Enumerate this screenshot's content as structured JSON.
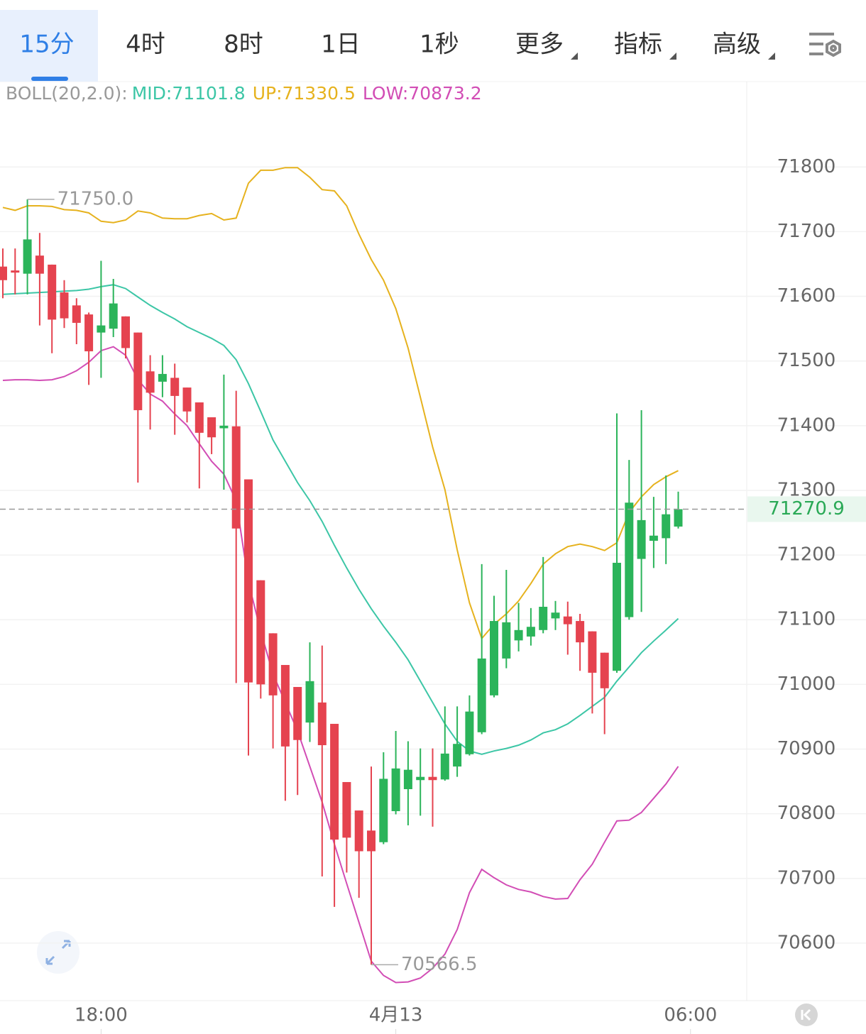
{
  "tabs": [
    {
      "label": "15分",
      "active": true
    },
    {
      "label": "4时"
    },
    {
      "label": "8时"
    },
    {
      "label": "1日"
    },
    {
      "label": "1秒"
    },
    {
      "label": "更多",
      "dropdown": true
    },
    {
      "label": "指标",
      "dropdown": true
    },
    {
      "label": "高级",
      "dropdown": true
    }
  ],
  "chart_data": {
    "type": "candlestick",
    "indicator": "BOLL(20,2.0):",
    "up_color": "#2bb45a",
    "down_color": "#e5434f",
    "open": [
      71646,
      71640,
      71635,
      71663,
      71649,
      71606,
      71586,
      71572,
      71544,
      71550,
      71569,
      71544,
      71484,
      71468,
      71474,
      71459,
      71436,
      71413,
      71396,
      71399,
      71317,
      71161,
      71079,
      71030,
      70996,
      70941,
      70972,
      70939,
      70849,
      70805,
      70774,
      70756,
      70804,
      70838,
      70852,
      70857,
      70853,
      70873,
      70892,
      70926,
      70983,
      71040,
      71068,
      71074,
      71084,
      71102,
      71105,
      71098,
      71082,
      71049,
      71021,
      71104,
      71194,
      71222,
      71226,
      71244
    ],
    "high": [
      71674,
      71674,
      71750,
      71698,
      71649,
      71625,
      71597,
      71575,
      71655,
      71627,
      71569,
      71544,
      71509,
      71509,
      71496,
      71459,
      71436,
      71413,
      71479,
      71454,
      71317,
      71161,
      71079,
      71030,
      70996,
      71065,
      71060,
      70939,
      70849,
      70805,
      70873,
      70895,
      70928,
      70912,
      70901,
      70901,
      70966,
      70966,
      70983,
      71186,
      71137,
      71177,
      71126,
      71118,
      71197,
      71129,
      71128,
      71109,
      71082,
      71049,
      71419,
      71347,
      71424,
      71290,
      71323,
      71298
    ],
    "low": [
      71597,
      71603,
      71603,
      71555,
      71512,
      71551,
      71526,
      71463,
      71474,
      71537,
      71504,
      71312,
      71394,
      71444,
      71386,
      71405,
      71303,
      71356,
      71301,
      71002,
      70890,
      70978,
      70901,
      70820,
      70829,
      70911,
      70703,
      70656,
      70709,
      70670,
      70566.5,
      70753,
      70799,
      70782,
      70797,
      70780,
      70851,
      70857,
      70890,
      70923,
      70980,
      71025,
      71051,
      71060,
      71079,
      71084,
      71046,
      71021,
      70955,
      70923,
      71018,
      71100,
      71112,
      71180,
      71186,
      71241
    ],
    "close": [
      71625,
      71637,
      71688,
      71635,
      71564,
      71566,
      71559,
      71515,
      71555,
      71589,
      71520,
      71424,
      71451,
      71480,
      71446,
      71422,
      71389,
      71382,
      71400,
      71241,
      71003,
      71000,
      70983,
      70904,
      70914,
      71005,
      70906,
      70760,
      70763,
      70742,
      70742,
      70854,
      70870,
      70868,
      70857,
      70852,
      70893,
      70908,
      70958,
      71040,
      71098,
      71096,
      71084,
      71089,
      71120,
      71111,
      71093,
      71065,
      71018,
      70994,
      71188,
      71281,
      71254,
      71230,
      71263,
      71270.9
    ],
    "series": [
      {
        "name": "MID",
        "legend_label": "MID:71101.8",
        "color": "#3cc6a6",
        "values": [
          71603,
          71604,
          71605,
          71606,
          71607,
          71608,
          71609,
          71611,
          71615,
          71618,
          71612,
          71599,
          71586,
          71575,
          71565,
          71553,
          71544,
          71535,
          71524,
          71502,
          71465,
          71422,
          71378,
          71345,
          71312,
          71284,
          71252,
          71215,
          71180,
          71147,
          71117,
          71090,
          71065,
          71038,
          71005,
          70972,
          70939,
          70912,
          70897,
          70892,
          70897,
          70901,
          70906,
          70914,
          70925,
          70930,
          70939,
          70952,
          70966,
          70980,
          71005,
          71027,
          71049,
          71067,
          71084,
          71101.8
        ]
      },
      {
        "name": "UP",
        "legend_label": "UP:71330.5",
        "color": "#e6b21e",
        "values": [
          71737.5,
          71733,
          71740,
          71740,
          71739,
          71734,
          71733,
          71729,
          71716,
          71714,
          71718,
          71732,
          71729,
          71721,
          71720,
          71720,
          71725,
          71728,
          71718,
          71721,
          71775,
          71795,
          71795,
          71799,
          71799,
          71784,
          71765,
          71763,
          71740,
          71696,
          71657,
          71625,
          71581,
          71520,
          71444,
          71367,
          71301,
          71208,
          71126,
          71071,
          71093,
          71109,
          71129,
          71156,
          71186,
          71202,
          71213,
          71217,
          71213,
          71207,
          71219,
          71266,
          71290,
          71309,
          71321,
          71330.5
        ]
      },
      {
        "name": "LOW",
        "legend_label": "LOW:70873.2",
        "color": "#d24db5",
        "values": [
          71470,
          71471,
          71471,
          71470,
          71471,
          71476,
          71485,
          71498,
          71516,
          71522,
          71509,
          71471,
          71449,
          71438,
          71418,
          71400,
          71372,
          71345,
          71325,
          71284,
          71158,
          71082,
          71016,
          70972,
          70928,
          70873,
          70818,
          70753,
          70692,
          70632,
          70572,
          70550,
          70539,
          70540,
          70546,
          70561,
          70583,
          70621,
          70678,
          70714,
          70701,
          70690,
          70683,
          70679,
          70672,
          70668,
          70669,
          70698,
          70722,
          70756,
          70789,
          70790,
          70802,
          70824,
          70846,
          70873.2
        ]
      }
    ],
    "ylim": [
      70511,
      71932
    ],
    "yticks": [
      70600,
      70700,
      70800,
      70900,
      71000,
      71100,
      71200,
      71300,
      71400,
      71500,
      71600,
      71700,
      71800
    ],
    "xticks": [
      {
        "value": 8,
        "label": "18:00"
      },
      {
        "value": 32,
        "label": "4月13"
      },
      {
        "value": 56,
        "label": "06:00"
      }
    ],
    "last_price": 71270.9,
    "annotations": [
      {
        "index": 2,
        "value": 71750,
        "label": "71750.0"
      },
      {
        "index": 30,
        "value": 70566.5
      }
    ],
    "grid": true
  }
}
